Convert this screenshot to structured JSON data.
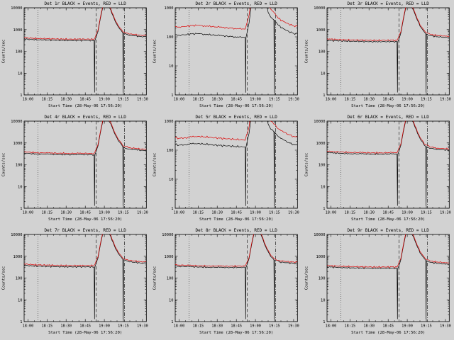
{
  "window": {
    "background": "#d2d2d2"
  },
  "chart_data": {
    "type": "line",
    "layout": {
      "rows": 3,
      "cols": 3
    },
    "xlabel": "Start Time (28-May-06 17:56:20)",
    "ylabel": "Counts/sec",
    "x_unit": "minutes after 18:00",
    "xlim": [
      -3,
      93
    ],
    "xticks": [
      0,
      15,
      30,
      45,
      60,
      75,
      90
    ],
    "xticklabels": [
      "18:00",
      "18:15",
      "18:30",
      "18:45",
      "19:00",
      "19:15",
      "19:30"
    ],
    "x_minor_step": 5,
    "legend_note": "BLACK = Events, RED = LLD",
    "colors": {
      "events": "#000000",
      "lld": "#dd0000",
      "axis": "#000000"
    },
    "reference_lines": [
      {
        "style": "dotted",
        "x": 8
      },
      {
        "style": "dashed",
        "x": 53.6
      },
      {
        "style": "dashdot",
        "x": 75.8
      }
    ],
    "x_templates": {
      "side_events": [
        -3,
        0,
        8,
        16,
        24,
        32,
        40,
        48,
        52,
        52.3,
        52.6,
        55,
        57,
        59,
        62,
        65,
        68,
        71,
        74.5,
        74.8,
        75.1,
        79,
        84,
        89,
        93
      ],
      "side_lld": [
        -3,
        0,
        8,
        16,
        24,
        32,
        40,
        48,
        52,
        55,
        57,
        59,
        62,
        65,
        68,
        71,
        74.5,
        79,
        84,
        89,
        93
      ],
      "mid_events": [
        -3,
        0,
        5,
        10,
        15,
        20,
        26,
        32,
        38,
        44,
        50,
        52,
        52.3,
        52.6,
        55,
        57,
        59,
        63,
        67,
        70,
        72,
        74.5,
        74.8,
        75.1,
        78,
        82,
        86,
        90,
        93
      ],
      "mid_lld": [
        -3,
        0,
        5,
        10,
        15,
        20,
        26,
        32,
        38,
        44,
        50,
        52,
        55,
        57,
        59,
        63,
        67,
        70,
        72,
        74.5,
        78,
        82,
        86,
        90,
        93
      ]
    },
    "detectors": [
      {
        "name": "1r",
        "title": "Det 1r BLACK = Events, RED = LLD",
        "x_template": "side",
        "ylim": [
          1,
          10000
        ],
        "yticks": [
          1,
          10,
          100,
          1000,
          10000
        ],
        "events_y": [
          375,
          357,
          340,
          330,
          323,
          316,
          316,
          320,
          313,
          1.3,
          313,
          800,
          3500,
          12000,
          16000,
          8000,
          2800,
          1300,
          700,
          1.3,
          680,
          560,
          510,
          480,
          470
        ],
        "lld_y": [
          430,
          410,
          391,
          380,
          371,
          364,
          364,
          368,
          360,
          920,
          4000,
          13800,
          18000,
          9200,
          3200,
          1500,
          805,
          645,
          587,
          552,
          540
        ]
      },
      {
        "name": "2r",
        "title": "Det 2r BLACK = Events, RED = LLD",
        "x_template": "mid",
        "ylim": [
          1,
          1000
        ],
        "yticks": [
          1,
          10,
          100,
          1000
        ],
        "events_y": [
          118,
          115,
          118,
          126,
          128,
          124,
          116,
          110,
          105,
          101,
          97,
          95,
          1.2,
          95,
          300,
          1500,
          4000,
          4500,
          3800,
          700,
          480,
          380,
          1.2,
          370,
          250,
          190,
          155,
          132,
          125
        ],
        "lld_y": [
          225,
          220,
          228,
          244,
          250,
          240,
          226,
          214,
          204,
          196,
          188,
          184,
          560,
          2700,
          7000,
          7600,
          6300,
          1300,
          900,
          700,
          430,
          340,
          280,
          240,
          230
        ]
      },
      {
        "name": "3r",
        "title": "Det 3r BLACK = Events, RED = LLD",
        "x_template": "side",
        "ylim": [
          1,
          10000
        ],
        "yticks": [
          1,
          10,
          100,
          1000,
          10000
        ],
        "events_y": [
          330,
          315,
          300,
          291,
          285,
          279,
          279,
          282,
          276,
          1.3,
          276,
          700,
          3000,
          11000,
          15000,
          7500,
          2600,
          1200,
          640,
          1.3,
          620,
          510,
          470,
          445,
          435
        ],
        "lld_y": [
          380,
          362,
          345,
          335,
          328,
          321,
          321,
          324,
          317,
          805,
          3450,
          12600,
          17000,
          8600,
          3000,
          1380,
          736,
          587,
          540,
          512,
          500
        ]
      },
      {
        "name": "4r",
        "title": "Det 4r BLACK = Events, RED = LLD",
        "x_template": "side",
        "ylim": [
          1,
          10000
        ],
        "yticks": [
          1,
          10,
          100,
          1000,
          10000
        ],
        "events_y": [
          341,
          326,
          310,
          301,
          295,
          288,
          288,
          291,
          285,
          1.3,
          285,
          720,
          3100,
          11200,
          15500,
          7700,
          2700,
          1250,
          660,
          1.3,
          640,
          525,
          485,
          460,
          450
        ],
        "lld_y": [
          392,
          375,
          357,
          346,
          339,
          331,
          331,
          335,
          328,
          830,
          3570,
          12900,
          17800,
          8900,
          3100,
          1440,
          760,
          604,
          558,
          529,
          518
        ]
      },
      {
        "name": "5r",
        "title": "Det 5r BLACK = Events, RED = LLD",
        "x_template": "mid",
        "ylim": [
          1,
          1000
        ],
        "yticks": [
          1,
          10,
          100,
          1000
        ],
        "events_y": [
          155,
          150,
          155,
          165,
          170,
          163,
          153,
          146,
          140,
          135,
          130,
          127,
          1.2,
          127,
          380,
          1800,
          4600,
          5000,
          4200,
          800,
          530,
          430,
          1.2,
          420,
          290,
          225,
          183,
          158,
          150
        ],
        "lld_y": [
          265,
          258,
          266,
          286,
          300,
          288,
          272,
          258,
          246,
          236,
          226,
          220,
          640,
          3000,
          7600,
          8200,
          6800,
          1500,
          1000,
          780,
          540,
          420,
          345,
          300,
          288
        ]
      },
      {
        "name": "6r",
        "title": "Det 6r BLACK = Events, RED = LLD",
        "x_template": "side",
        "ylim": [
          1,
          10000
        ],
        "yticks": [
          1,
          10,
          100,
          1000,
          10000
        ],
        "events_y": [
          363,
          347,
          330,
          320,
          314,
          307,
          307,
          310,
          304,
          1.3,
          304,
          780,
          3400,
          11800,
          15800,
          7900,
          2750,
          1280,
          690,
          1.3,
          670,
          550,
          505,
          475,
          465
        ],
        "lld_y": [
          417,
          399,
          380,
          368,
          361,
          353,
          353,
          357,
          350,
          897,
          3910,
          13600,
          18200,
          9100,
          3160,
          1470,
          794,
          632,
          581,
          546,
          535
        ]
      },
      {
        "name": "7r",
        "title": "Det 7r BLACK = Events, RED = LLD",
        "x_template": "side",
        "ylim": [
          1,
          10000
        ],
        "yticks": [
          1,
          10,
          100,
          1000,
          10000
        ],
        "events_y": [
          385,
          368,
          350,
          340,
          333,
          326,
          326,
          329,
          322,
          1.3,
          322,
          820,
          3600,
          12200,
          16200,
          8100,
          2850,
          1320,
          710,
          1.3,
          690,
          570,
          520,
          490,
          480
        ],
        "lld_y": [
          443,
          423,
          403,
          391,
          383,
          375,
          375,
          378,
          370,
          943,
          4140,
          14000,
          18600,
          9300,
          3280,
          1520,
          817,
          655,
          598,
          564,
          552
        ]
      },
      {
        "name": "8r",
        "title": "Det 8r BLACK = Events, RED = LLD",
        "x_template": "side",
        "ylim": [
          1,
          10000
        ],
        "yticks": [
          1,
          10,
          100,
          1000,
          10000
        ],
        "events_y": [
          363,
          346,
          331,
          321,
          313,
          307,
          306,
          311,
          303,
          1.3,
          303,
          770,
          3350,
          11700,
          15700,
          7850,
          2740,
          1270,
          685,
          1.3,
          665,
          548,
          503,
          473,
          463
        ],
        "lld_y": [
          415,
          397,
          379,
          367,
          359,
          352,
          351,
          356,
          348,
          886,
          3850,
          13450,
          18050,
          9030,
          3150,
          1460,
          788,
          630,
          578,
          544,
          532
        ]
      },
      {
        "name": "9r",
        "title": "Det 9r BLACK = Events, RED = LLD",
        "x_template": "side",
        "ylim": [
          1,
          10000
        ],
        "yticks": [
          1,
          10,
          100,
          1000,
          10000
        ],
        "events_y": [
          332,
          317,
          302,
          293,
          286,
          280,
          279,
          283,
          277,
          1.3,
          277,
          705,
          3020,
          11050,
          15100,
          7550,
          2610,
          1210,
          645,
          1.3,
          625,
          512,
          472,
          447,
          437
        ],
        "lld_y": [
          382,
          364,
          347,
          337,
          329,
          322,
          321,
          325,
          318,
          810,
          3470,
          12700,
          17100,
          8680,
          3010,
          1390,
          742,
          589,
          543,
          514,
          502
        ]
      }
    ]
  }
}
